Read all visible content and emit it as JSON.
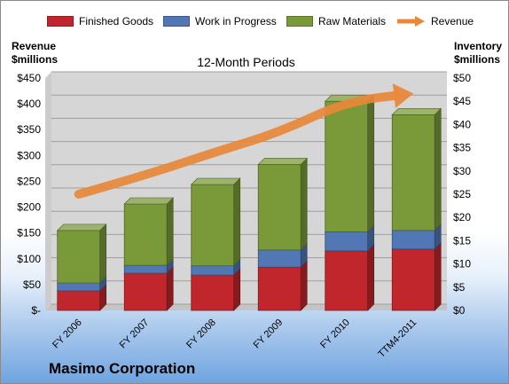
{
  "legend": {
    "finished_goods": "Finished Goods",
    "work_in_progress": "Work in Progress",
    "raw_materials": "Raw Materials",
    "revenue": "Revenue"
  },
  "left_axis_title": {
    "line1": "Revenue",
    "line2": "$millions"
  },
  "right_axis_title": {
    "line1": "Inventory",
    "line2": "$millions"
  },
  "subtitle": "12-Month Periods",
  "company": "Masimo Corporation",
  "colors": {
    "finished_goods": "#c0262b",
    "work_in_progress": "#5277b5",
    "raw_materials": "#7a9a3a",
    "revenue": "#e8883a",
    "plot_bg": "#d6d6d6"
  },
  "chart_data": {
    "type": "bar",
    "stacked": true,
    "categories": [
      "FY 2006",
      "FY 2007",
      "FY 2008",
      "FY 2009",
      "FY 2010",
      "TTM4-2011"
    ],
    "series": [
      {
        "name": "Finished Goods",
        "axis": "right",
        "values": [
          4.2,
          8.0,
          7.6,
          9.3,
          12.8,
          13.2
        ]
      },
      {
        "name": "Work in Progress",
        "axis": "right",
        "values": [
          1.7,
          1.7,
          2.0,
          3.7,
          4.1,
          4.0
        ]
      },
      {
        "name": "Raw Materials",
        "axis": "right",
        "values": [
          11.3,
          13.2,
          17.5,
          18.4,
          28.1,
          24.9
        ]
      },
      {
        "name": "Revenue",
        "type": "line",
        "axis": "left",
        "values": [
          225,
          262,
          305,
          345,
          405,
          420
        ]
      }
    ],
    "left_axis": {
      "title": "Revenue $millions",
      "ylim": [
        0,
        450
      ],
      "ticks": [
        "$-",
        "$50",
        "$100",
        "$150",
        "$200",
        "$250",
        "$300",
        "$350",
        "$400",
        "$450"
      ]
    },
    "right_axis": {
      "title": "Inventory $millions",
      "ylim": [
        0,
        50
      ],
      "ticks": [
        "$0",
        "$5",
        "$10",
        "$15",
        "$20",
        "$25",
        "$30",
        "$35",
        "$40",
        "$45",
        "$50"
      ]
    },
    "grid": true
  }
}
